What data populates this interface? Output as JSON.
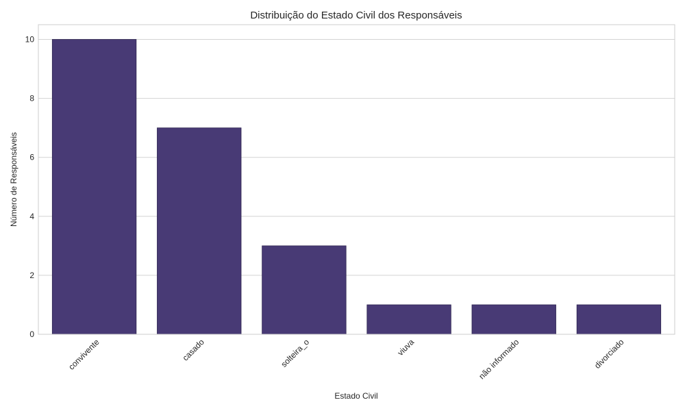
{
  "chart_data": {
    "type": "bar",
    "title": "Distribuição do Estado Civil dos Responsáveis",
    "xlabel": "Estado Civil",
    "ylabel": "Número de Responsáveis",
    "categories": [
      "convivente",
      "casado",
      "solteira_o",
      "viuva",
      "não informado",
      "divorciado"
    ],
    "values": [
      10,
      7,
      3,
      1,
      1,
      1
    ],
    "ylim": [
      0,
      10.5
    ],
    "yticks": [
      "0",
      "2",
      "4",
      "6",
      "8",
      "10"
    ],
    "grid": true,
    "bar_color": "#483a75",
    "grid_color": "#d3d3d3",
    "axes_edge_color": "#cccccc"
  }
}
